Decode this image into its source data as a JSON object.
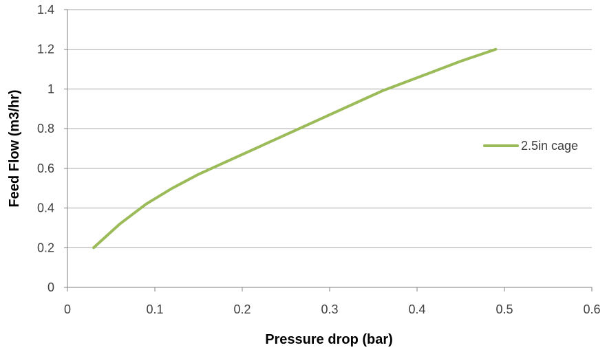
{
  "chart_data": {
    "type": "line",
    "title": "",
    "xlabel": "Pressure drop (bar)",
    "ylabel": "Feed Flow (m3/hr)",
    "xlim": [
      0,
      0.6
    ],
    "ylim": [
      0,
      1.4
    ],
    "x_ticks": [
      "0",
      "0.1",
      "0.2",
      "0.3",
      "0.4",
      "0.5",
      "0.6"
    ],
    "y_ticks": [
      "0",
      "0.2",
      "0.4",
      "0.6",
      "0.8",
      "1",
      "1.2",
      "1.4"
    ],
    "grid": "horizontal",
    "legend_position": "right",
    "series": [
      {
        "name": "2.5in cage",
        "color": "#9BBB59",
        "x": [
          0.03,
          0.06,
          0.09,
          0.12,
          0.15,
          0.18,
          0.21,
          0.24,
          0.27,
          0.3,
          0.33,
          0.36,
          0.39,
          0.42,
          0.45,
          0.49
        ],
        "y": [
          0.2,
          0.32,
          0.42,
          0.5,
          0.57,
          0.63,
          0.69,
          0.75,
          0.81,
          0.87,
          0.93,
          0.99,
          1.04,
          1.09,
          1.14,
          1.2
        ]
      }
    ]
  }
}
